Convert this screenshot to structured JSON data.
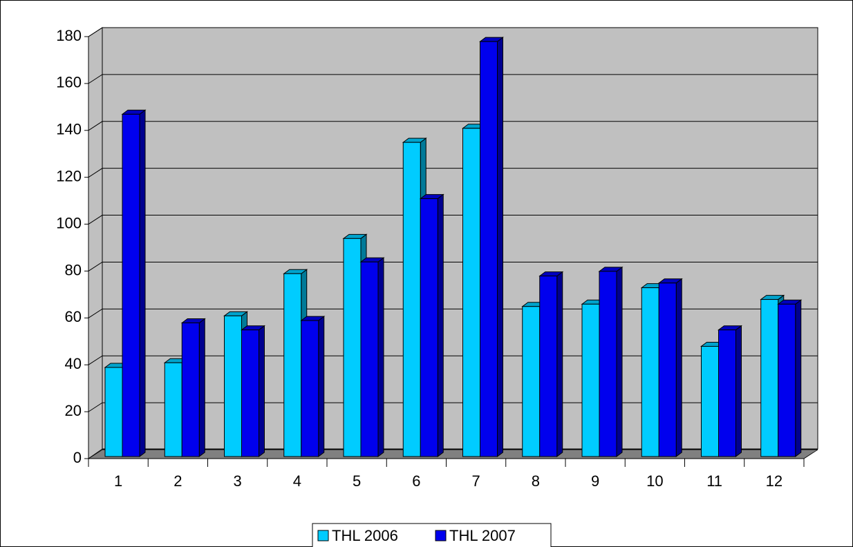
{
  "chart_data": {
    "type": "bar3d",
    "categories": [
      "1",
      "2",
      "3",
      "4",
      "5",
      "6",
      "7",
      "8",
      "9",
      "10",
      "11",
      "12"
    ],
    "series": [
      {
        "name": "THL 2006",
        "color": "#00ccff",
        "values": [
          38,
          40,
          60,
          78,
          93,
          134,
          140,
          64,
          65,
          72,
          47,
          67
        ]
      },
      {
        "name": "THL 2007",
        "color": "#0000ee",
        "values": [
          146,
          57,
          54,
          58,
          83,
          110,
          177,
          77,
          79,
          74,
          54,
          65
        ]
      }
    ],
    "ylim": [
      0,
      180
    ],
    "yticks": [
      0,
      20,
      40,
      60,
      80,
      100,
      120,
      140,
      160,
      180
    ],
    "grid": true,
    "legend": "bottom"
  }
}
